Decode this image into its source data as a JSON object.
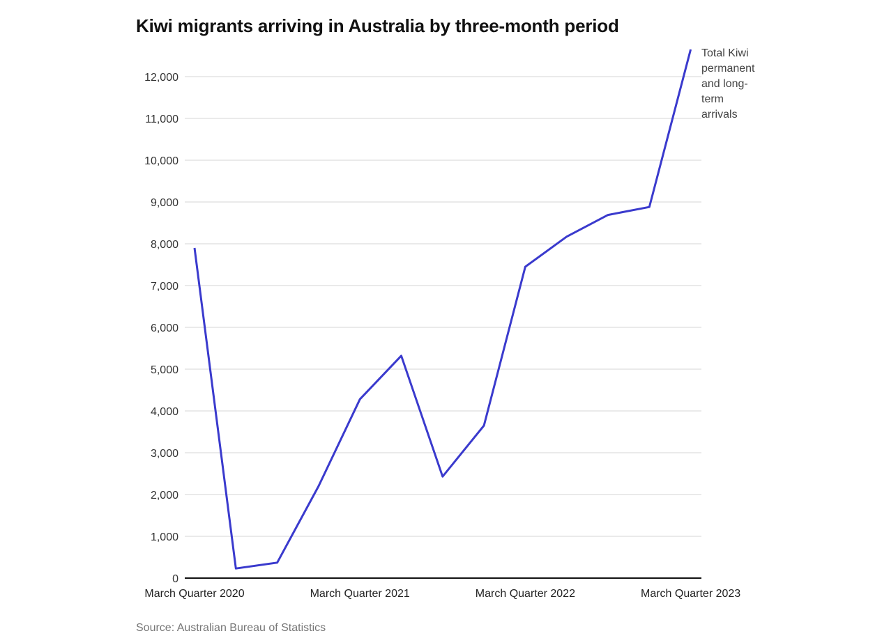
{
  "chart_data": {
    "type": "line",
    "title": "Kiwi migrants arriving in Australia by three-month period",
    "source": "Source: Australian Bureau of Statistics",
    "x_tick_labels": [
      "March Quarter 2020",
      "March Quarter 2021",
      "March Quarter 2022",
      "March Quarter 2023"
    ],
    "x_tick_positions": [
      0,
      4,
      8,
      12
    ],
    "y_tick_labels": [
      "0",
      "1,000",
      "2,000",
      "3,000",
      "4,000",
      "5,000",
      "6,000",
      "7,000",
      "8,000",
      "9,000",
      "10,000",
      "11,000",
      "12,000"
    ],
    "ylim": [
      0,
      12000
    ],
    "grid": true,
    "series": [
      {
        "name": "Total Kiwi permanent and long-term arrivals",
        "color": "#3a3acd",
        "x": [
          0,
          1,
          2,
          3,
          4,
          5,
          6,
          7,
          8,
          9,
          10,
          11,
          12
        ],
        "values": [
          7900,
          230,
          370,
          2200,
          4280,
          5320,
          2430,
          3650,
          7450,
          8170,
          8690,
          8880,
          12650
        ]
      }
    ]
  }
}
